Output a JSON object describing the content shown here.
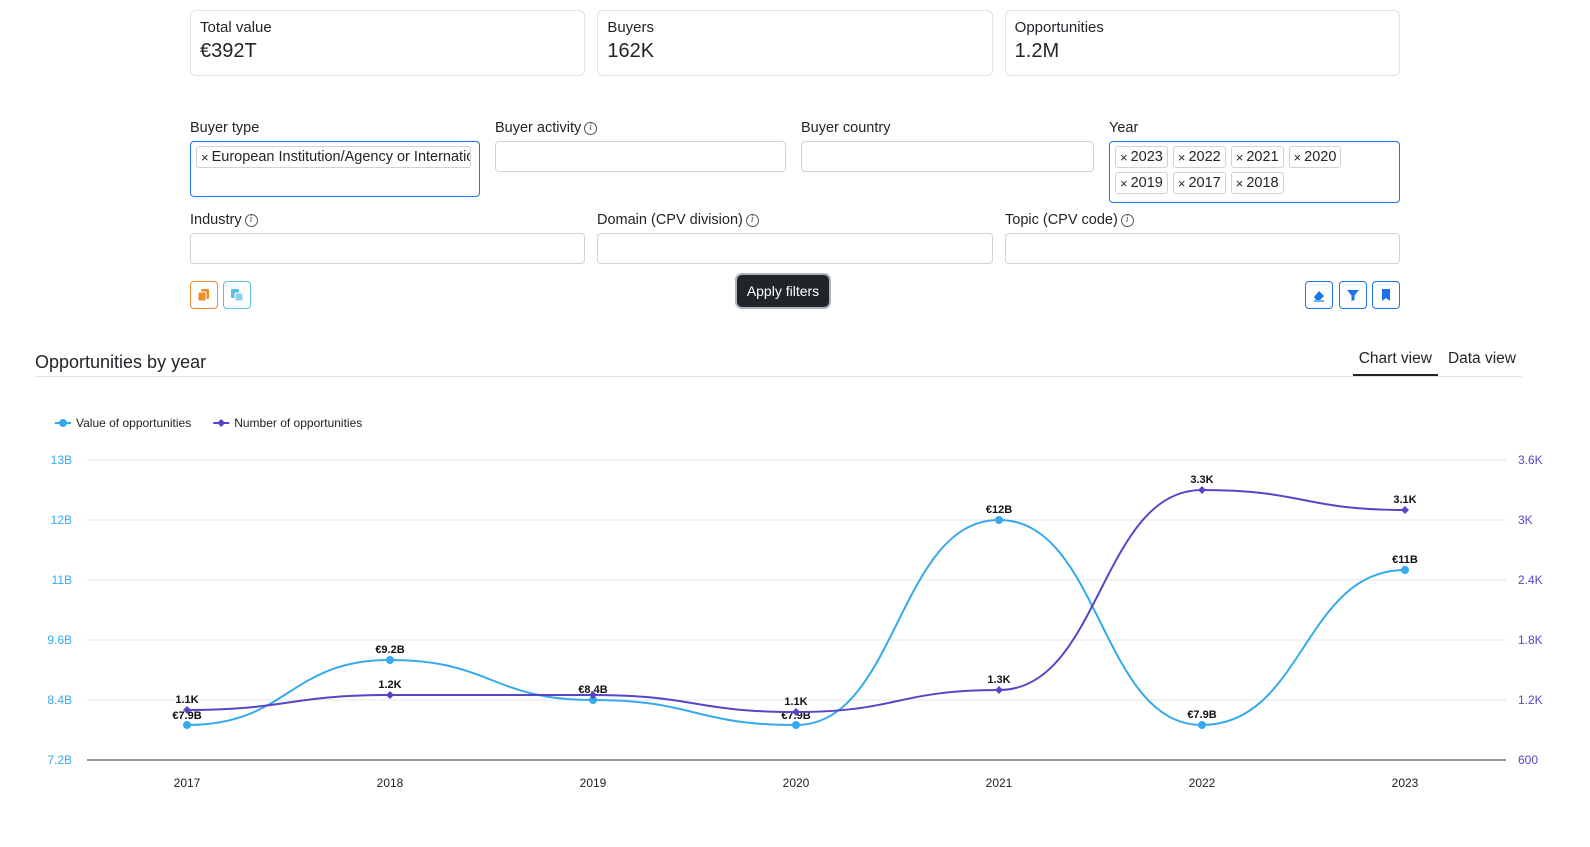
{
  "kpis": [
    {
      "label": "Total value",
      "value": "€392T"
    },
    {
      "label": "Buyers",
      "value": "162K"
    },
    {
      "label": "Opportunities",
      "value": "1.2M"
    }
  ],
  "filters": {
    "buyer_type": {
      "label": "Buyer type",
      "tags": [
        "European Institution/Agency or International Organisation"
      ]
    },
    "buyer_activity": {
      "label": "Buyer activity"
    },
    "buyer_country": {
      "label": "Buyer country"
    },
    "year": {
      "label": "Year",
      "tags": [
        "2023",
        "2022",
        "2021",
        "2020",
        "2019",
        "2017",
        "2018"
      ]
    },
    "industry": {
      "label": "Industry"
    },
    "domain": {
      "label": "Domain (CPV division)"
    },
    "topic": {
      "label": "Topic (CPV code)"
    }
  },
  "actions": {
    "apply_label": "Apply filters",
    "icons": [
      "copy-orange-icon",
      "copy-teal-icon",
      "eraser-icon",
      "filter-icon",
      "bookmark-icon"
    ],
    "colors": {
      "orange": "#f28c28",
      "teal": "#5bc0de",
      "blue": "#1a73e8",
      "dark": "#212529"
    }
  },
  "section": {
    "title": "Opportunities by year",
    "tabs": [
      {
        "label": "Chart view",
        "active": true
      },
      {
        "label": "Data view",
        "active": false
      }
    ]
  },
  "chart_data": {
    "type": "line",
    "categories": [
      "2017",
      "2018",
      "2019",
      "2020",
      "2021",
      "2022",
      "2023"
    ],
    "series": [
      {
        "name": "Value of opportunities",
        "axis": "left",
        "color": "#36a9ee",
        "values": [
          7.9,
          9.2,
          8.4,
          7.9,
          12,
          7.9,
          11
        ],
        "labels": [
          "€7.9B",
          "€9.2B",
          "€8.4B",
          "€7.9B",
          "€12B",
          "€7.9B",
          "€11B"
        ]
      },
      {
        "name": "Number of opportunities",
        "axis": "right",
        "color": "#5546c8",
        "values": [
          1.1,
          1.25,
          1.25,
          1.08,
          1.3,
          3.3,
          3.1
        ],
        "labels": [
          "1.1K",
          "1.2K",
          "",
          "1.1K",
          "1.3K",
          "3.3K",
          "3.1K"
        ]
      }
    ],
    "left_axis": {
      "ticks": [
        "7.2B",
        "8.4B",
        "9.6B",
        "11B",
        "12B",
        "13B"
      ],
      "range": [
        7.2,
        13.2
      ],
      "color": "#36a9ee"
    },
    "right_axis": {
      "ticks": [
        "600",
        "1.2K",
        "1.8K",
        "2.4K",
        "3K",
        "3.6K"
      ],
      "range": [
        0.6,
        3.6
      ],
      "color": "#5546c8"
    },
    "legend_position": "top-left",
    "grid": true
  }
}
